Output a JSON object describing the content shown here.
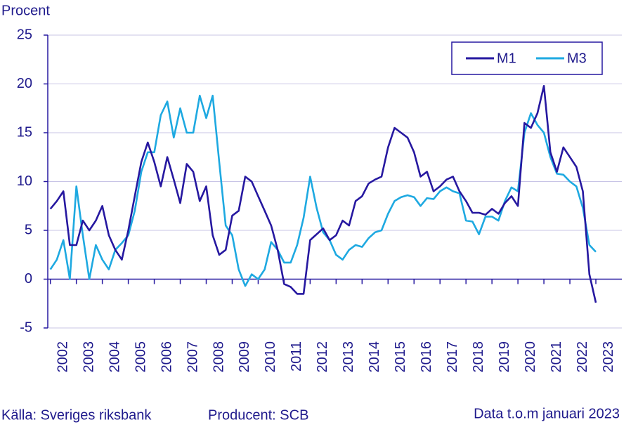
{
  "chart_data": {
    "type": "line",
    "y_label": "Procent",
    "x": [
      2002,
      2002.25,
      2002.5,
      2002.75,
      2003,
      2003.25,
      2003.5,
      2003.75,
      2004,
      2004.25,
      2004.5,
      2004.75,
      2005,
      2005.25,
      2005.5,
      2005.75,
      2006,
      2006.25,
      2006.5,
      2006.75,
      2007,
      2007.25,
      2007.5,
      2007.75,
      2008,
      2008.25,
      2008.5,
      2008.75,
      2009,
      2009.25,
      2009.5,
      2009.75,
      2010,
      2010.25,
      2010.5,
      2010.75,
      2011,
      2011.25,
      2011.5,
      2011.75,
      2012,
      2012.25,
      2012.5,
      2012.75,
      2013,
      2013.25,
      2013.5,
      2013.75,
      2014,
      2014.25,
      2014.5,
      2014.75,
      2015,
      2015.25,
      2015.5,
      2015.75,
      2016,
      2016.25,
      2016.5,
      2016.75,
      2017,
      2017.25,
      2017.5,
      2017.75,
      2018,
      2018.25,
      2018.5,
      2018.75,
      2019,
      2019.25,
      2019.5,
      2019.75,
      2020,
      2020.25,
      2020.5,
      2020.75,
      2021,
      2021.25,
      2021.5,
      2021.75,
      2022,
      2022.25,
      2022.5,
      2022.75,
      2023
    ],
    "series": [
      {
        "name": "M1",
        "color": "#2618a0",
        "values": [
          7.2,
          8,
          9,
          3.5,
          3.5,
          6,
          5,
          6,
          7.5,
          4.5,
          3,
          2,
          5,
          8.5,
          12,
          14,
          12,
          9.5,
          12.5,
          10.2,
          7.8,
          11.8,
          11,
          8,
          9.5,
          4.5,
          2.5,
          3,
          6.5,
          7,
          10.5,
          10,
          8.5,
          7,
          5.5,
          3,
          -0.5,
          -0.8,
          -1.5,
          -1.5,
          4,
          4.6,
          5.2,
          4,
          4.5,
          6,
          5.5,
          8,
          8.5,
          9.8,
          10.2,
          10.5,
          13.5,
          15.5,
          15,
          14.5,
          13,
          10.5,
          11,
          9,
          9.5,
          10.2,
          10.5,
          9,
          8,
          6.8,
          6.8,
          6.6,
          7.2,
          6.7,
          7.8,
          8.5,
          7.5,
          16,
          15.5,
          17,
          19.8,
          13,
          11,
          13.5,
          12.5,
          11.5,
          9,
          0.5,
          -2.4
        ]
      },
      {
        "name": "M3",
        "color": "#1ea9e1",
        "values": [
          1,
          2,
          4,
          0,
          9.5,
          4.5,
          0,
          3.5,
          2,
          1,
          3,
          3.7,
          4.5,
          7,
          11,
          13,
          13,
          16.8,
          18.2,
          14.5,
          17.5,
          15,
          15,
          18.8,
          16.5,
          18.8,
          12,
          5.5,
          4.5,
          1,
          -0.7,
          0.5,
          0,
          1,
          3.8,
          3,
          1.7,
          1.7,
          3.5,
          6.3,
          10.5,
          7.3,
          4.8,
          4,
          2.5,
          2,
          3,
          3.5,
          3.3,
          4.2,
          4.8,
          5,
          6.7,
          8,
          8.4,
          8.6,
          8.4,
          7.5,
          8.3,
          8.2,
          9,
          9.4,
          9,
          8.8,
          6,
          5.9,
          4.6,
          6.4,
          6.4,
          6,
          8,
          9.4,
          9,
          15,
          17,
          15.8,
          15,
          12.5,
          10.8,
          10.7,
          10,
          9.5,
          7.3,
          3.5,
          2.8
        ]
      }
    ],
    "xlim": [
      2001.9,
      2024.0
    ],
    "xticks": [
      2002,
      2003,
      2004,
      2005,
      2006,
      2007,
      2008,
      2009,
      2010,
      2011,
      2012,
      2013,
      2014,
      2015,
      2016,
      2017,
      2018,
      2019,
      2020,
      2021,
      2022,
      2023
    ],
    "ylim": [
      -5,
      25
    ],
    "yticks": [
      -5,
      0,
      5,
      10,
      15,
      20,
      25
    ],
    "grid": true,
    "legend": "upper right",
    "footer": {
      "source": "Källa: Sveriges riksbank",
      "producer": "Producent: SCB",
      "note": "Data t.o.m januari 2023"
    }
  }
}
